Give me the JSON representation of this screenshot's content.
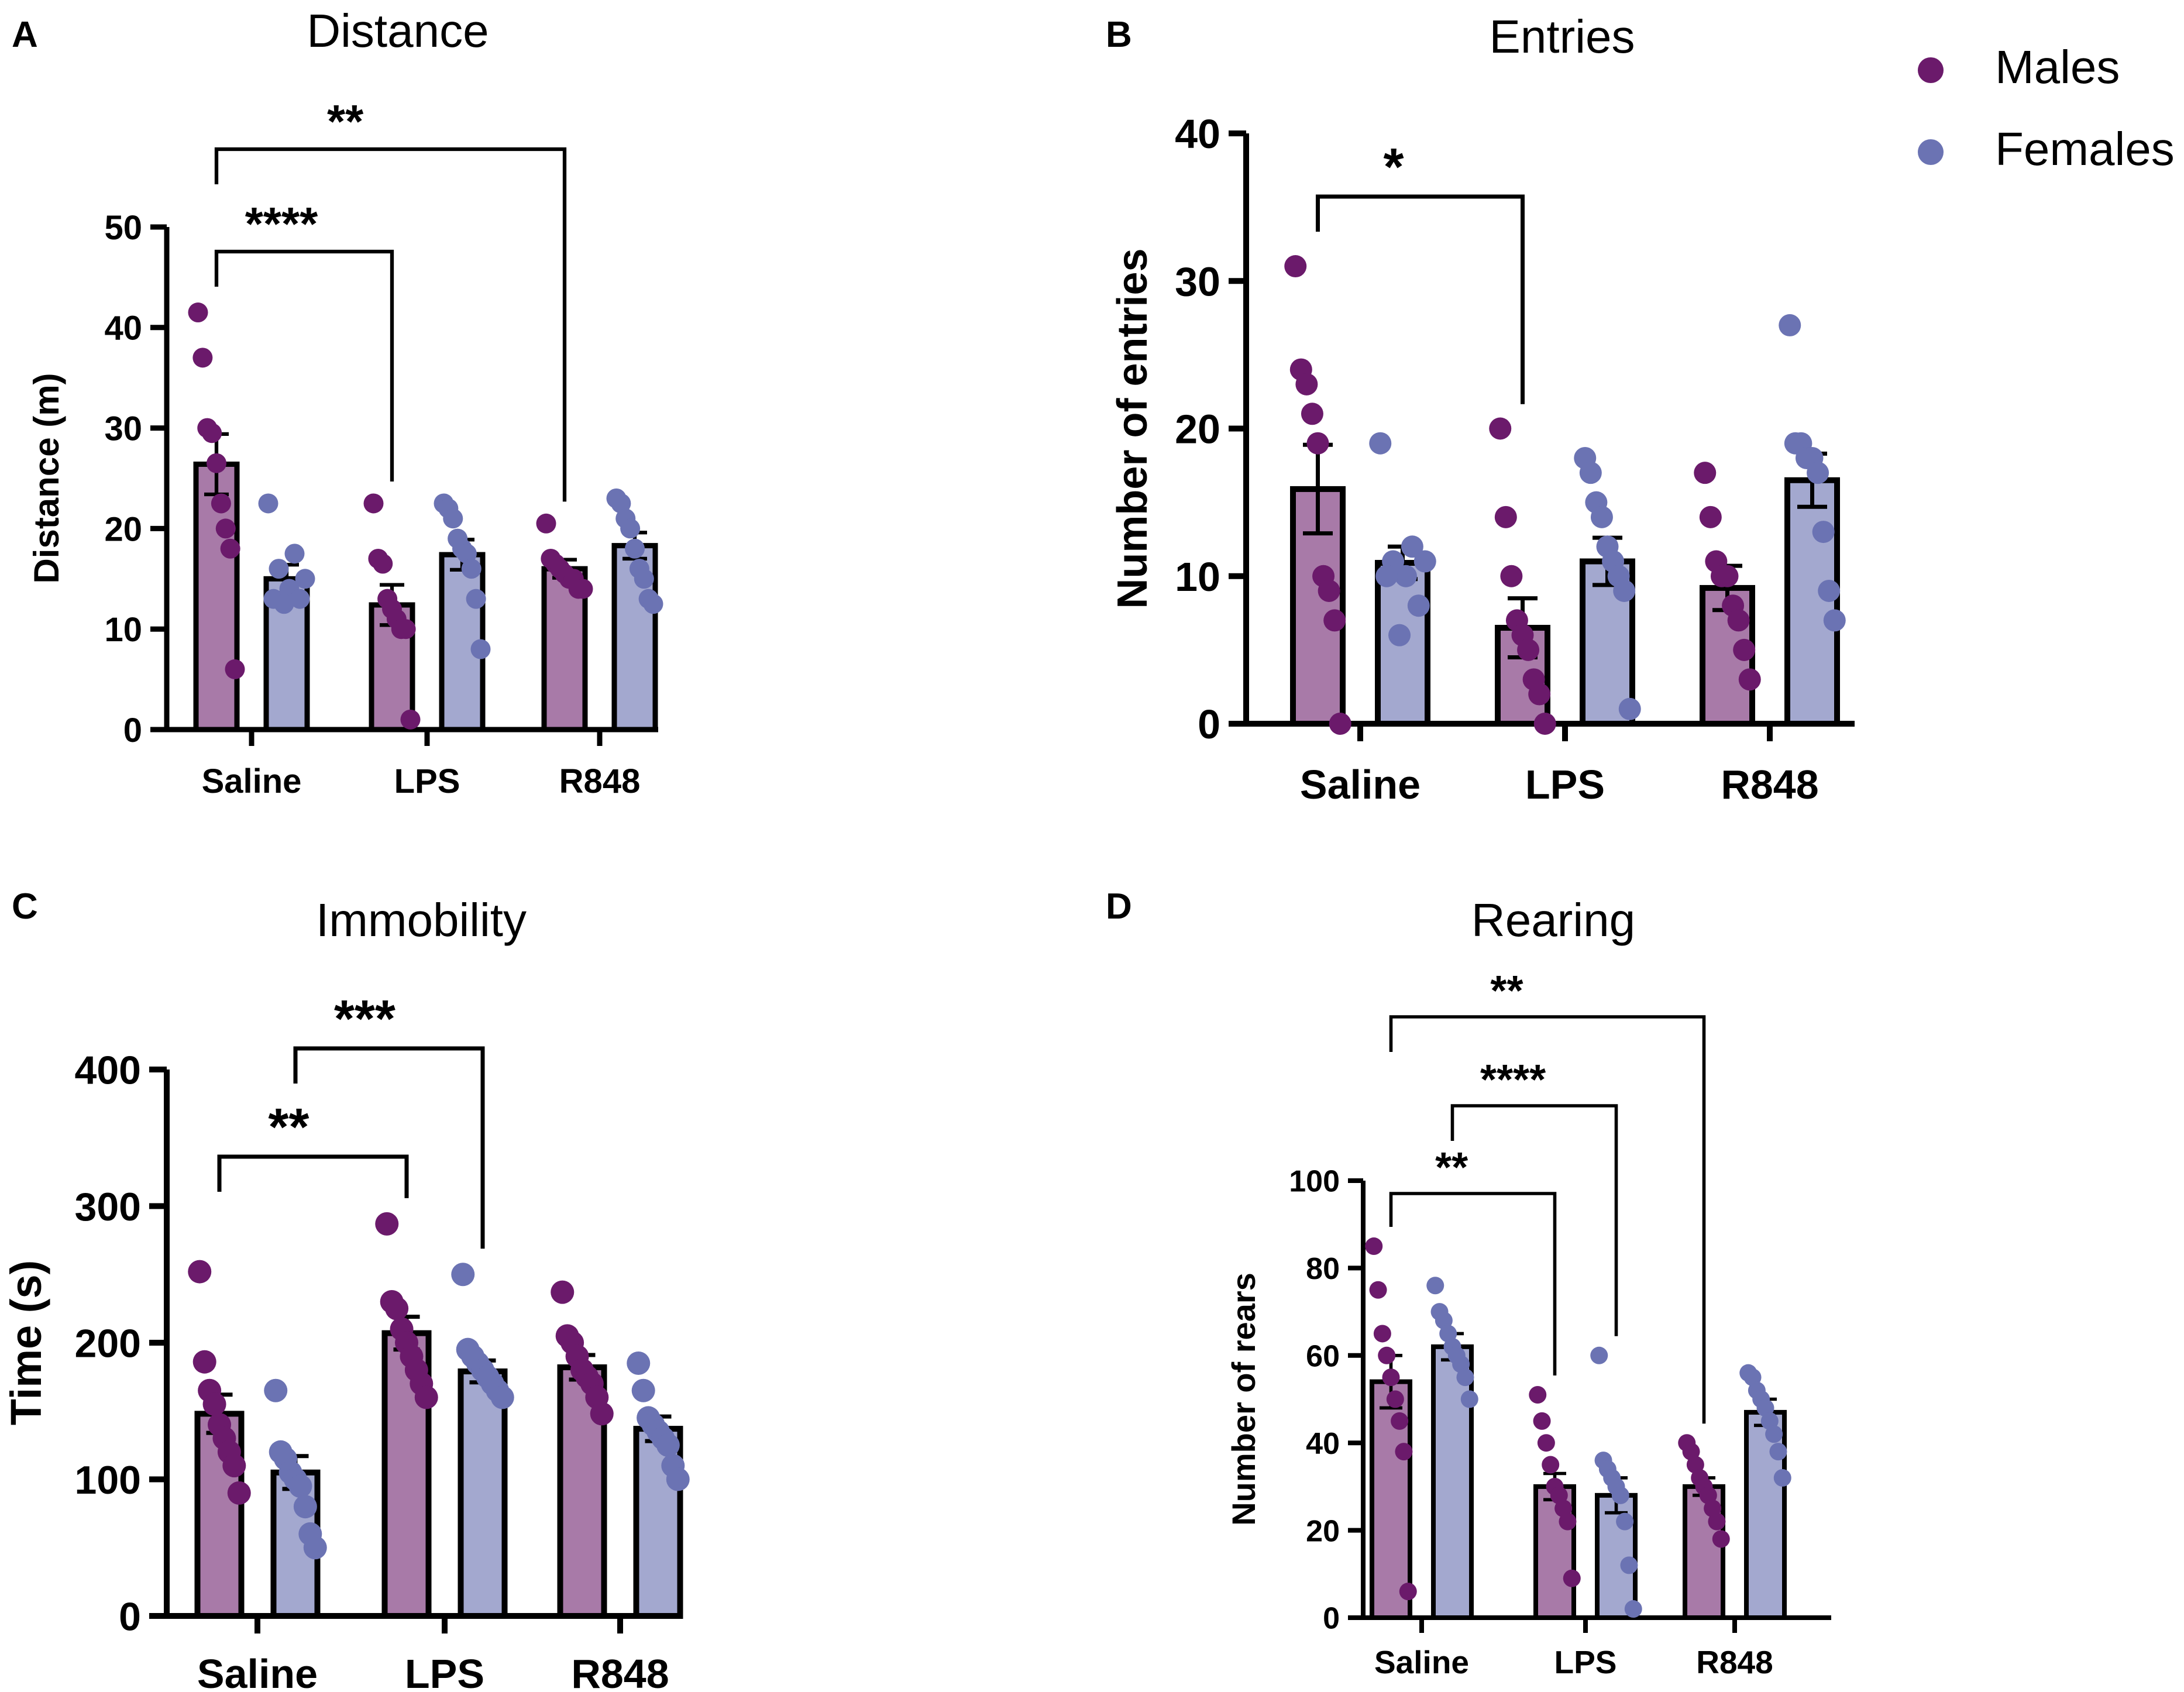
{
  "colors": {
    "males_dot": "#6b1a6b",
    "females_dot": "#6b73b3",
    "males_bar": "#a87aa8",
    "females_bar": "#a3a8cf",
    "axis": "#000000"
  },
  "legend": {
    "males": "Males",
    "females": "Females"
  },
  "chart_data": [
    {
      "id": "A",
      "type": "bar",
      "letter": "A",
      "title": "Distance",
      "ylabel": "Distance (m)",
      "categories": [
        "Saline",
        "LPS",
        "R848"
      ],
      "ylim": [
        0,
        50
      ],
      "yticks": [
        0,
        10,
        20,
        30,
        40,
        50
      ],
      "series": [
        {
          "name": "Males",
          "means": [
            26.4,
            12.4,
            16.0
          ],
          "sem": [
            3.0,
            2.0,
            0.9
          ],
          "points": [
            [
              41.5,
              37,
              30,
              29.5,
              26.5,
              22.5,
              20,
              18,
              6
            ],
            [
              22.5,
              17,
              16.5,
              13,
              12,
              11,
              10,
              10,
              1
            ],
            [
              20.5,
              17,
              16.5,
              16,
              15.5,
              15,
              15,
              14,
              14
            ]
          ]
        },
        {
          "name": "Females",
          "means": [
            15.0,
            17.4,
            18.3
          ],
          "sem": [
            1.4,
            1.5,
            1.3
          ],
          "points": [
            [
              22.5,
              17.5,
              16,
              15,
              14,
              13,
              13,
              12.5
            ],
            [
              22.5,
              22,
              21,
              19,
              18,
              17.5,
              16,
              13,
              8
            ],
            [
              23,
              22.5,
              21,
              20,
              18,
              16,
              15,
              13,
              12.5
            ]
          ]
        }
      ],
      "brackets": [
        {
          "from": [
            0,
            0
          ],
          "to": [
            1,
            0
          ],
          "label": "****",
          "level": 0
        },
        {
          "from": [
            0,
            0
          ],
          "to": [
            2,
            0
          ],
          "label": "**",
          "level": 1
        }
      ]
    },
    {
      "id": "B",
      "type": "bar",
      "letter": "B",
      "title": "Entries",
      "ylabel": "Number of entries",
      "categories": [
        "Saline",
        "LPS",
        "R848"
      ],
      "ylim": [
        0,
        40
      ],
      "yticks": [
        0,
        10,
        20,
        30,
        40
      ],
      "series": [
        {
          "name": "Males",
          "means": [
            15.9,
            6.5,
            9.2
          ],
          "sem": [
            3.0,
            2.0,
            1.5
          ],
          "points": [
            [
              31,
              24,
              23,
              21,
              19,
              10,
              9,
              7,
              0
            ],
            [
              20,
              14,
              10,
              7,
              6,
              5,
              3,
              2,
              0
            ],
            [
              17,
              14,
              11,
              10,
              10,
              8,
              7,
              5,
              3
            ]
          ]
        },
        {
          "name": "Females",
          "means": [
            10.9,
            11.0,
            16.5
          ],
          "sem": [
            1.1,
            1.6,
            1.8
          ],
          "points": [
            [
              19,
              12,
              11,
              11,
              10,
              10,
              8,
              6
            ],
            [
              18,
              17,
              15,
              14,
              12,
              11,
              10,
              9,
              1
            ],
            [
              27,
              19,
              19,
              18,
              18,
              17,
              13,
              9,
              7
            ]
          ]
        }
      ],
      "brackets": [
        {
          "from": [
            0,
            0
          ],
          "to": [
            1,
            0
          ],
          "label": "*",
          "level": 0
        }
      ]
    },
    {
      "id": "C",
      "type": "bar",
      "letter": "C",
      "title": "Immobility",
      "ylabel": "Time (s)",
      "categories": [
        "Saline",
        "LPS",
        "R848"
      ],
      "ylim": [
        0,
        400
      ],
      "yticks": [
        0,
        100,
        200,
        300,
        400
      ],
      "series": [
        {
          "name": "Males",
          "means": [
            148,
            207,
            182
          ],
          "sem": [
            14,
            12,
            9
          ],
          "points": [
            [
              252,
              186,
              165,
              155,
              140,
              130,
              120,
              110,
              90
            ],
            [
              287,
              230,
              225,
              210,
              200,
              190,
              180,
              170,
              160
            ],
            [
              237,
              205,
              200,
              190,
              180,
              175,
              170,
              160,
              148
            ]
          ]
        },
        {
          "name": "Females",
          "means": [
            105,
            179,
            137
          ],
          "sem": [
            12,
            8,
            9
          ],
          "points": [
            [
              165,
              120,
              115,
              105,
              100,
              95,
              80,
              60,
              50
            ],
            [
              250,
              195,
              190,
              185,
              180,
              175,
              170,
              165,
              160
            ],
            [
              185,
              165,
              145,
              140,
              135,
              130,
              125,
              110,
              100
            ]
          ]
        }
      ],
      "brackets": [
        {
          "from": [
            0,
            0
          ],
          "to": [
            1,
            0
          ],
          "label": "**",
          "level": 0
        },
        {
          "from": [
            0,
            1
          ],
          "to": [
            1,
            1
          ],
          "label": "***",
          "level": 1
        }
      ]
    },
    {
      "id": "D",
      "type": "bar",
      "letter": "D",
      "title": "Rearing",
      "ylabel": "Number of rears",
      "categories": [
        "Saline",
        "LPS",
        "R848"
      ],
      "ylim": [
        0,
        100
      ],
      "yticks": [
        0,
        20,
        40,
        60,
        80,
        100
      ],
      "series": [
        {
          "name": "Males",
          "means": [
            54,
            30,
            30
          ],
          "sem": [
            6,
            3,
            2
          ],
          "points": [
            [
              85,
              75,
              65,
              60,
              55,
              50,
              45,
              38,
              6
            ],
            [
              51,
              45,
              40,
              35,
              30,
              28,
              25,
              22,
              9
            ],
            [
              40,
              38,
              35,
              32,
              30,
              28,
              25,
              22,
              18
            ]
          ]
        },
        {
          "name": "Females",
          "means": [
            62,
            28,
            47
          ],
          "sem": [
            3,
            4,
            3
          ],
          "points": [
            [
              76,
              70,
              68,
              65,
              62,
              60,
              58,
              55,
              50
            ],
            [
              60,
              36,
              34,
              32,
              30,
              28,
              22,
              12,
              2
            ],
            [
              56,
              55,
              52,
              50,
              48,
              45,
              42,
              38,
              32
            ]
          ]
        }
      ],
      "brackets": [
        {
          "from": [
            0,
            0
          ],
          "to": [
            1,
            0
          ],
          "label": "**",
          "level": 0
        },
        {
          "from": [
            0,
            1
          ],
          "to": [
            1,
            1
          ],
          "label": "****",
          "level": 1
        },
        {
          "from": [
            0,
            0
          ],
          "to": [
            2,
            0
          ],
          "label": "**",
          "level": 2
        }
      ]
    }
  ]
}
